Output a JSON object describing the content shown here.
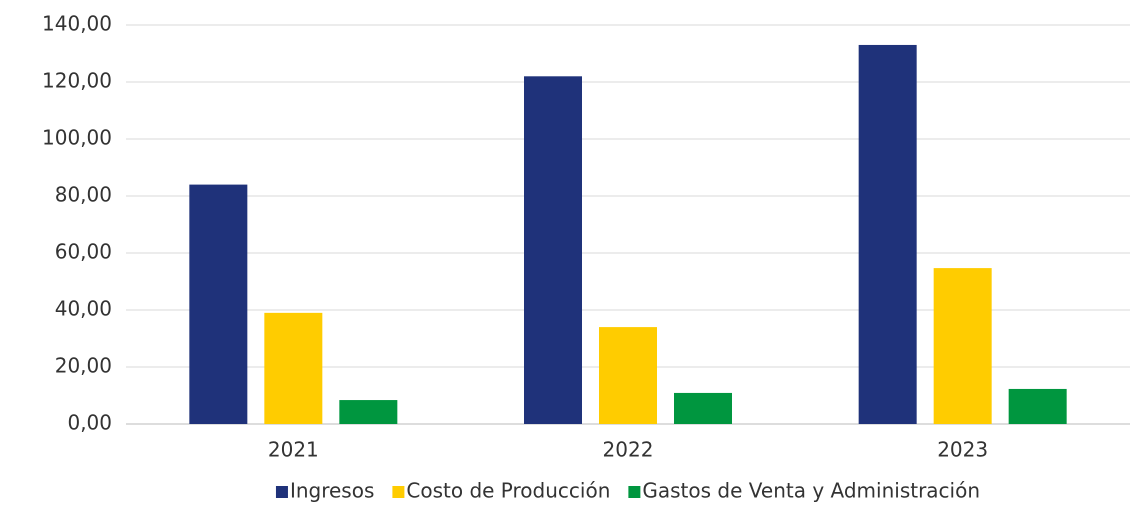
{
  "chart_data": {
    "type": "bar",
    "categories": [
      "2021",
      "2022",
      "2023"
    ],
    "series": [
      {
        "name": "Ingresos",
        "color": "#1f327a",
        "values": [
          84,
          122,
          133
        ]
      },
      {
        "name": "Costo de Producción",
        "color": "#ffcc00",
        "values": [
          39,
          34,
          54.7
        ]
      },
      {
        "name": "Gastos de Venta y Administración",
        "color": "#00963f",
        "values": [
          8.4,
          10.9,
          12.3
        ]
      }
    ],
    "ylim": [
      0,
      140
    ],
    "yticks": [
      {
        "value": 0,
        "label": "0,00"
      },
      {
        "value": 20,
        "label": "20,00"
      },
      {
        "value": 40,
        "label": "40,00"
      },
      {
        "value": 60,
        "label": "60,00"
      },
      {
        "value": 80,
        "label": "80,00"
      },
      {
        "value": 100,
        "label": "100,00"
      },
      {
        "value": 120,
        "label": "120,00"
      },
      {
        "value": 140,
        "label": "140,00"
      }
    ],
    "grid": true,
    "legend": "bottom"
  }
}
